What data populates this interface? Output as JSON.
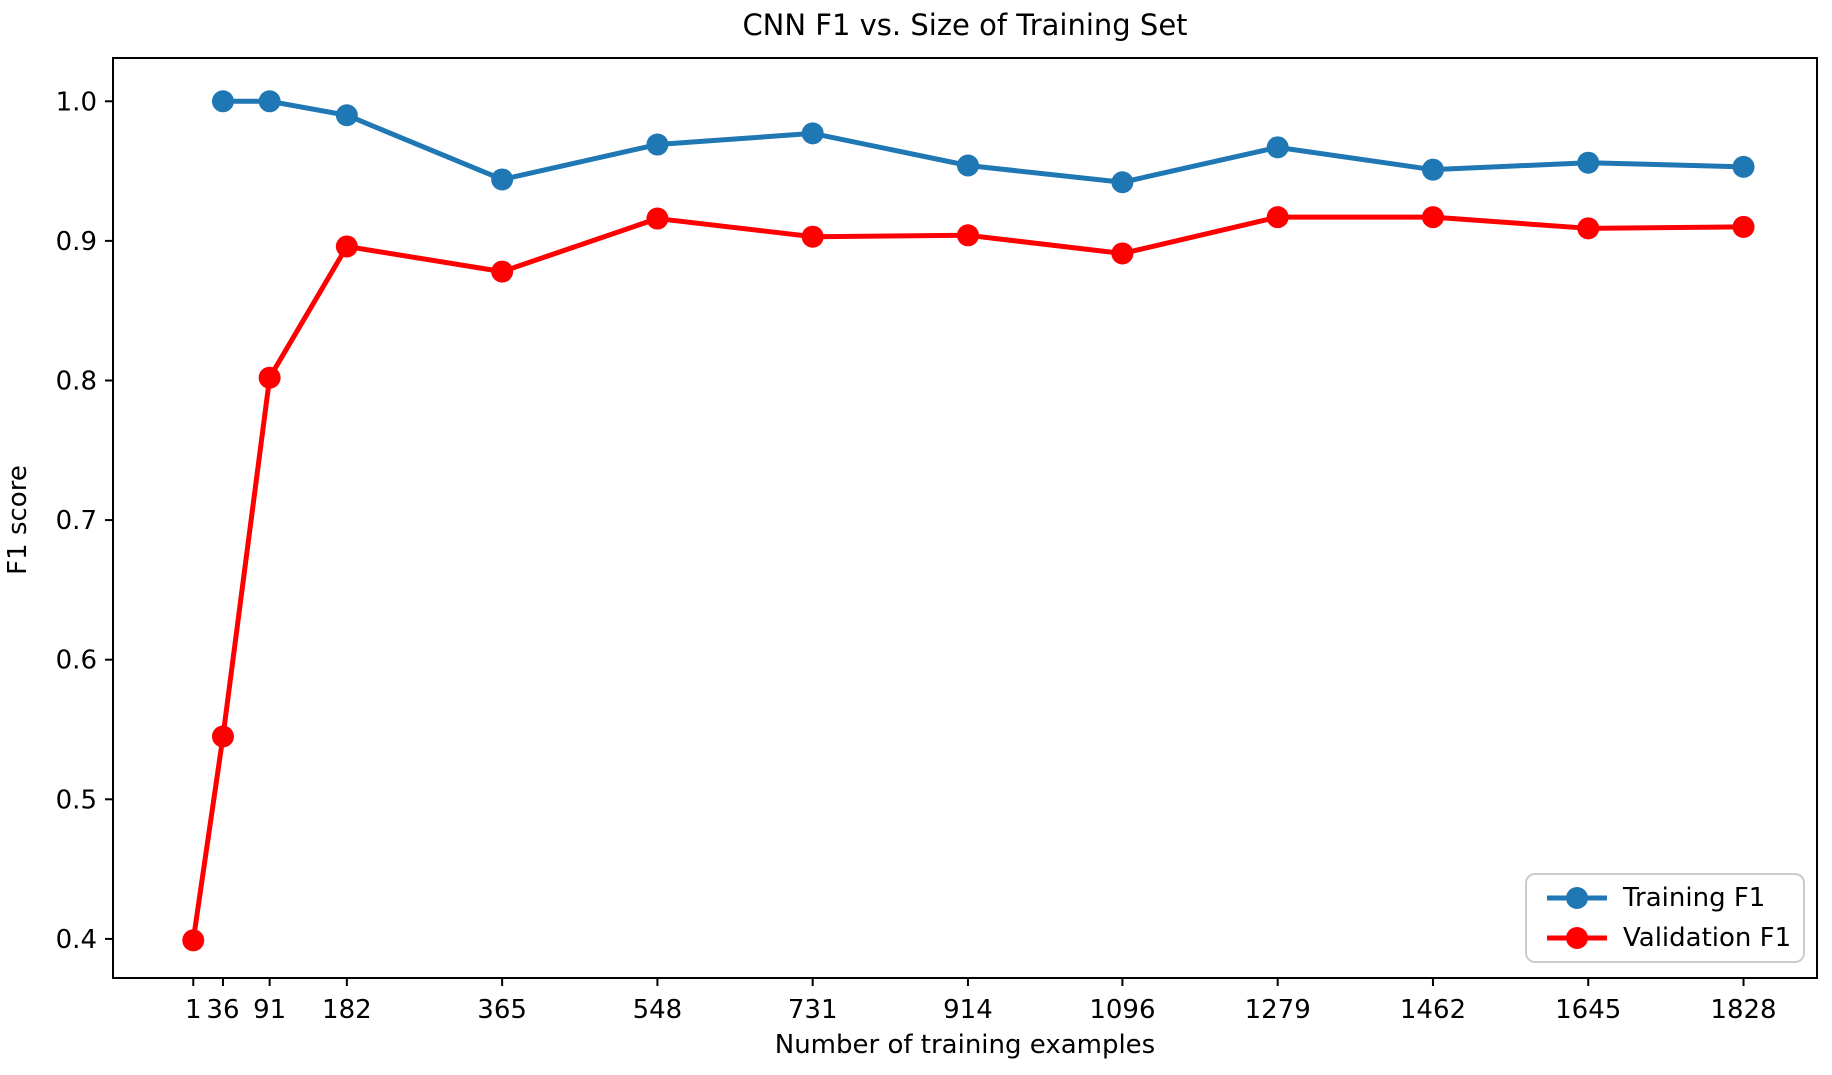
{
  "chart_data": {
    "type": "line",
    "title": "CNN F1 vs. Size of Training Set",
    "xlabel": "Number of training examples",
    "ylabel": "F1 score",
    "x_ticks": [
      1,
      36,
      91,
      182,
      365,
      548,
      731,
      914,
      1096,
      1279,
      1462,
      1645,
      1828
    ],
    "y_ticks": [
      "0.4",
      "0.5",
      "0.6",
      "0.7",
      "0.8",
      "0.9",
      "1.0"
    ],
    "y_tick_values": [
      0.4,
      0.5,
      0.6,
      0.7,
      0.8,
      0.9,
      1.0
    ],
    "xlim": [
      -93.6,
      1914.6
    ],
    "ylim": [
      0.372,
      1.031
    ],
    "grid": false,
    "legend_position": "lower right",
    "frame_color": "#000000",
    "background_color": "#ffffff",
    "series": [
      {
        "name": "Training F1",
        "color": "#1f77b4",
        "x": [
          36,
          91,
          182,
          365,
          548,
          731,
          914,
          1096,
          1279,
          1462,
          1645,
          1828
        ],
        "y": [
          1.0,
          1.0,
          0.99,
          0.944,
          0.969,
          0.977,
          0.954,
          0.942,
          0.967,
          0.951,
          0.956,
          0.953
        ]
      },
      {
        "name": "Validation F1",
        "color": "#ff0000",
        "x": [
          1,
          36,
          91,
          182,
          365,
          548,
          731,
          914,
          1096,
          1279,
          1462,
          1645,
          1828
        ],
        "y": [
          0.399,
          0.545,
          0.802,
          0.896,
          0.878,
          0.916,
          0.903,
          0.904,
          0.891,
          0.917,
          0.917,
          0.909,
          0.91
        ]
      }
    ]
  }
}
